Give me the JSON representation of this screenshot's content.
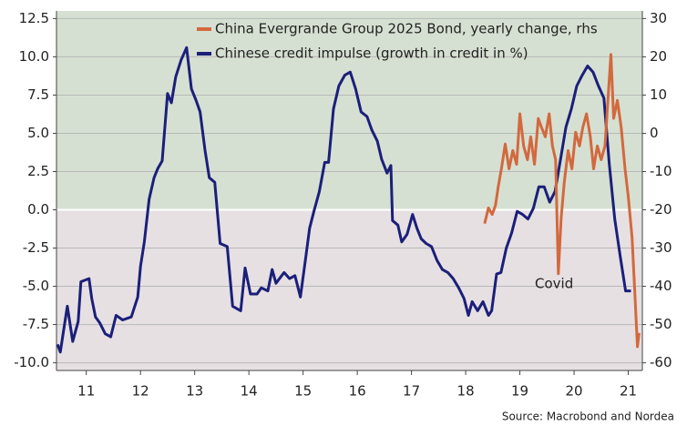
{
  "chart_data": {
    "type": "line",
    "legend": "top",
    "grid": true,
    "annotation": "Covid",
    "source": "Source: Macrobond and Nordea",
    "xlim": [
      10.95,
      21.76
    ],
    "xticks": [
      {
        "value": 11.5,
        "label": "11"
      },
      {
        "value": 12.5,
        "label": "12"
      },
      {
        "value": 13.5,
        "label": "13"
      },
      {
        "value": 14.5,
        "label": "14"
      },
      {
        "value": 15.5,
        "label": "15"
      },
      {
        "value": 16.5,
        "label": "16"
      },
      {
        "value": 17.5,
        "label": "17"
      },
      {
        "value": 18.5,
        "label": "18"
      },
      {
        "value": 19.5,
        "label": "19"
      },
      {
        "value": 20.5,
        "label": "20"
      },
      {
        "value": 21.5,
        "label": "21"
      }
    ],
    "ylim": [
      -10.5,
      13.0
    ],
    "yticks": [
      12.5,
      {
        "value": 10,
        "label": "10.0"
      },
      7.5,
      {
        "value": 5,
        "label": "5.0"
      },
      2.5,
      {
        "value": 0,
        "label": "0.0"
      },
      -2.5,
      {
        "value": -5,
        "label": "-5.0"
      },
      -7.5,
      {
        "value": -10,
        "label": "-10.0"
      }
    ],
    "y2lim": [
      -62,
      32
    ],
    "y2ticks": [
      30,
      20,
      10,
      0,
      -10,
      -20,
      -30,
      -40,
      -50,
      -60
    ],
    "series": [
      {
        "name": "China Evergrande Group 2025 Bond, yearly change, rhs",
        "color": "#d2693e",
        "axis": "y2",
        "x": [
          18.85,
          18.92,
          18.99,
          19.05,
          19.1,
          19.16,
          19.23,
          19.3,
          19.37,
          19.44,
          19.5,
          19.57,
          19.64,
          19.7,
          19.77,
          19.84,
          19.9,
          19.97,
          20.04,
          20.1,
          20.16,
          20.21,
          20.26,
          20.32,
          20.39,
          20.46,
          20.53,
          20.6,
          20.66,
          20.73,
          20.8,
          20.86,
          20.93,
          21.0,
          21.07,
          21.13,
          21.18,
          21.23,
          21.3,
          21.37,
          21.44,
          21.5,
          21.57,
          21.62,
          21.67,
          21.7
        ],
        "values": [
          -23.6,
          -19.5,
          -21.2,
          -18.8,
          -14.0,
          -9.3,
          -2.8,
          -9.3,
          -4.5,
          -8.1,
          5.1,
          -3.3,
          -6.9,
          -0.9,
          -8.1,
          3.9,
          1.5,
          -0.9,
          5.1,
          -3.3,
          -6.9,
          -36.7,
          -22.4,
          -12.8,
          -4.5,
          -9.3,
          0.3,
          -3.3,
          1.5,
          5.1,
          -0.9,
          -9.3,
          -3.3,
          -6.9,
          -3.3,
          9.8,
          20.6,
          3.9,
          8.6,
          1.5,
          -9.3,
          -16.4,
          -27.2,
          -41.5,
          -55.8,
          -52.2
        ]
      },
      {
        "name": "Chinese credit impulse (growth in credit in %)",
        "color": "#1b1f7a",
        "x": [
          10.97,
          11.02,
          11.15,
          11.25,
          11.35,
          11.4,
          11.55,
          11.6,
          11.67,
          11.75,
          11.85,
          11.95,
          12.05,
          12.17,
          12.33,
          12.45,
          12.5,
          12.57,
          12.66,
          12.75,
          12.82,
          12.9,
          13.0,
          13.07,
          13.15,
          13.25,
          13.35,
          13.44,
          13.52,
          13.6,
          13.69,
          13.77,
          13.87,
          13.97,
          14.1,
          14.2,
          14.35,
          14.43,
          14.53,
          14.65,
          14.73,
          14.85,
          14.93,
          15.0,
          15.15,
          15.25,
          15.35,
          15.45,
          15.55,
          15.62,
          15.7,
          15.8,
          15.9,
          15.97,
          16.06,
          16.16,
          16.27,
          16.37,
          16.47,
          16.57,
          16.68,
          16.77,
          16.87,
          16.95,
          17.05,
          17.12,
          17.15,
          17.25,
          17.32,
          17.42,
          17.52,
          17.6,
          17.68,
          17.77,
          17.87,
          17.97,
          18.07,
          18.17,
          18.27,
          18.37,
          18.47,
          18.55,
          18.62,
          18.72,
          18.82,
          18.92,
          18.98,
          19.07,
          19.15,
          19.25,
          19.35,
          19.45,
          19.55,
          19.65,
          19.75,
          19.85,
          19.95,
          20.05,
          20.15,
          20.25,
          20.35,
          20.45,
          20.55,
          20.65,
          20.75,
          20.85,
          20.95,
          21.05,
          21.15,
          21.25,
          21.35,
          21.45,
          21.55
        ],
        "values": [
          -8.8,
          -9.3,
          -6.3,
          -8.6,
          -7.3,
          -4.7,
          -4.5,
          -5.8,
          -7.0,
          -7.4,
          -8.1,
          -8.3,
          -6.9,
          -7.2,
          -7.0,
          -5.7,
          -3.7,
          -2.1,
          0.7,
          2.1,
          2.7,
          3.2,
          7.6,
          7.0,
          8.7,
          9.8,
          10.6,
          7.9,
          7.2,
          6.4,
          3.9,
          2.1,
          1.8,
          -2.2,
          -2.4,
          -6.3,
          -6.6,
          -3.8,
          -5.5,
          -5.5,
          -5.1,
          -5.3,
          -3.9,
          -4.8,
          -4.1,
          -4.5,
          -4.3,
          -5.7,
          -3.1,
          -1.2,
          -0.1,
          1.2,
          3.1,
          3.1,
          6.6,
          8.1,
          8.8,
          9.0,
          7.9,
          6.4,
          6.1,
          5.2,
          4.5,
          3.3,
          2.4,
          2.9,
          -0.7,
          -1.0,
          -2.1,
          -1.6,
          -0.3,
          -1.2,
          -1.9,
          -2.2,
          -2.4,
          -3.3,
          -3.9,
          -4.1,
          -4.5,
          -5.1,
          -5.8,
          -6.9,
          -6.0,
          -6.6,
          -6.0,
          -6.9,
          -6.6,
          -4.2,
          -4.1,
          -2.5,
          -1.5,
          -0.1,
          -0.3,
          -0.6,
          0.1,
          1.5,
          1.5,
          0.5,
          1.2,
          3.3,
          5.4,
          6.6,
          8.1,
          8.8,
          9.4,
          9.0,
          8.1,
          7.3,
          3.0,
          -0.6,
          -3.0,
          -5.3,
          -5.3
        ]
      }
    ]
  }
}
